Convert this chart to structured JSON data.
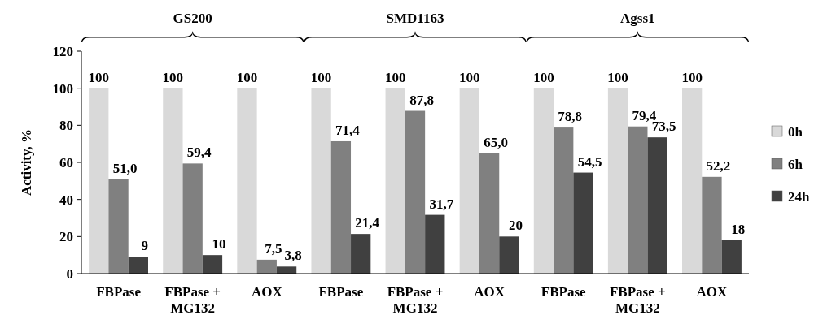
{
  "chart_data": {
    "type": "bar",
    "ylabel": "Activity, %",
    "categories": [
      "FBPase",
      "FBPase +\nMG132",
      "AOX",
      "FBPase",
      "FBPase +\nMG132",
      "AOX",
      "FBPase",
      "FBPase +\nMG132",
      "AOX"
    ],
    "series": [
      {
        "name": "0h",
        "color": "#d9d9d9",
        "values": [
          100,
          100,
          100,
          100,
          100,
          100,
          100,
          100,
          100
        ],
        "value_labels": [
          "100",
          "100",
          "100",
          "100",
          "100",
          "100",
          "100",
          "100",
          "100"
        ]
      },
      {
        "name": "6h",
        "color": "#808080",
        "values": [
          51.0,
          59.4,
          7.5,
          71.4,
          87.8,
          65.0,
          78.8,
          79.4,
          52.2
        ],
        "value_labels": [
          "51,0",
          "59,4",
          "7,5",
          "71,4",
          "87,8",
          "65,0",
          "78,8",
          "79,4",
          "52,2"
        ]
      },
      {
        "name": "24h",
        "color": "#404040",
        "values": [
          9,
          10,
          3.8,
          21.4,
          31.7,
          20,
          54.5,
          73.5,
          18
        ],
        "value_labels": [
          "9",
          "10",
          "3,8",
          "21,4",
          "31,7",
          "20",
          "54,5",
          "73,5",
          "18"
        ]
      }
    ],
    "annotations": [
      "GS200",
      "SMD1163",
      "Agss1"
    ],
    "ylim": [
      0,
      120
    ],
    "yticks": [
      0,
      20,
      40,
      60,
      80,
      100,
      120
    ],
    "legend": "right"
  }
}
